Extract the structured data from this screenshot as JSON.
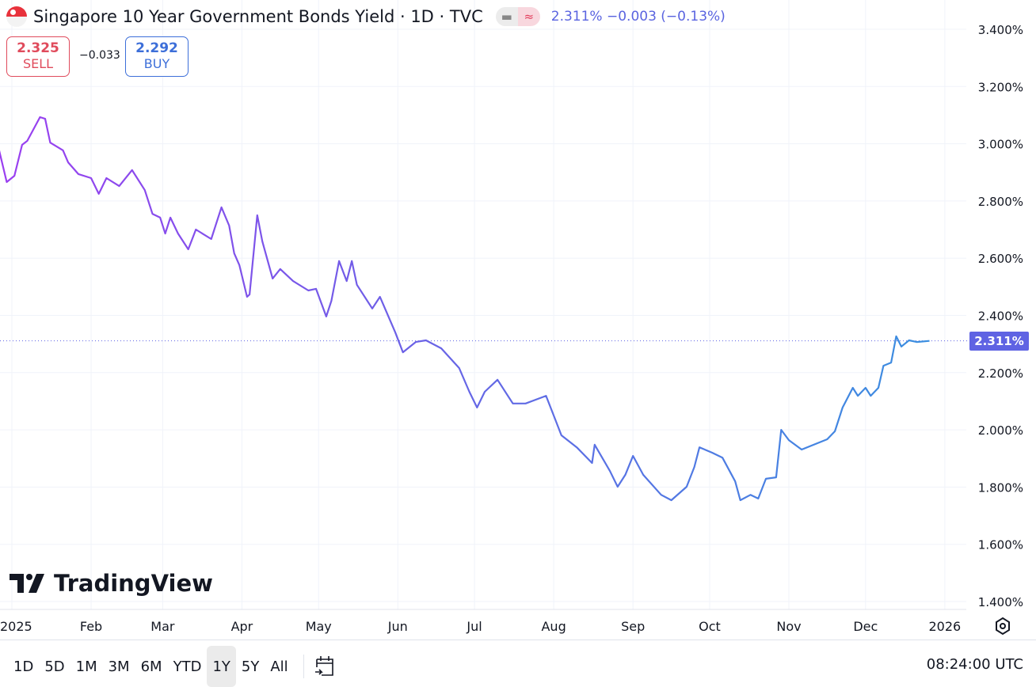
{
  "header": {
    "title": "Singapore 10 Year Government Bonds Yield · 1D · TVC",
    "quote": "2.311% −0.003 (−0.13%)",
    "pill_left_icon": "minus-icon",
    "pill_right_icon": "approx-icon"
  },
  "trade": {
    "sell_price": "2.325",
    "sell_label": "SELL",
    "spread": "−0.033",
    "buy_price": "2.292",
    "buy_label": "BUY"
  },
  "logo": "TradingView",
  "current_label": "2.311%",
  "bottom": {
    "ranges": [
      "1D",
      "5D",
      "1M",
      "3M",
      "6M",
      "YTD",
      "1Y",
      "5Y",
      "All"
    ],
    "active": "1Y",
    "time": "08:24:00 UTC"
  },
  "colors": {
    "line_start": "#9b3ff0",
    "line_end": "#3a8fe0",
    "price_label": "#5f63e3"
  },
  "chart_data": {
    "type": "line",
    "yticks": [
      "3.400%",
      "3.200%",
      "3.000%",
      "2.800%",
      "2.600%",
      "2.400%",
      "2.200%",
      "2.000%",
      "1.800%",
      "1.600%",
      "1.400%"
    ],
    "ylim": [
      1.4,
      3.4
    ],
    "xticks": [
      [
        "2025",
        "2025-01-01"
      ],
      [
        "Feb",
        "2025-02-01"
      ],
      [
        "Mar",
        "2025-03-01"
      ],
      [
        "Apr",
        "2025-04-01"
      ],
      [
        "May",
        "2025-05-01"
      ],
      [
        "Jun",
        "2025-06-01"
      ],
      [
        "Jul",
        "2025-07-01"
      ],
      [
        "Aug",
        "2025-08-01"
      ],
      [
        "Sep",
        "2025-09-01"
      ],
      [
        "Oct",
        "2025-10-01"
      ],
      [
        "Nov",
        "2025-11-01"
      ],
      [
        "Dec",
        "2025-12-01"
      ],
      [
        "2026",
        "2026-01-01"
      ]
    ],
    "grid": true,
    "points": [
      [
        "2024-12-27",
        2.977
      ],
      [
        "2024-12-30",
        2.866
      ],
      [
        "2025-01-02",
        2.888
      ],
      [
        "2025-01-05",
        2.996
      ],
      [
        "2025-01-07",
        3.01
      ],
      [
        "2025-01-12",
        3.093
      ],
      [
        "2025-01-14",
        3.087
      ],
      [
        "2025-01-16",
        3.004
      ],
      [
        "2025-01-21",
        2.977
      ],
      [
        "2025-01-23",
        2.935
      ],
      [
        "2025-01-27",
        2.894
      ],
      [
        "2025-02-01",
        2.88
      ],
      [
        "2025-02-04",
        2.825
      ],
      [
        "2025-02-07",
        2.88
      ],
      [
        "2025-02-12",
        2.852
      ],
      [
        "2025-02-17",
        2.908
      ],
      [
        "2025-02-22",
        2.838
      ],
      [
        "2025-02-25",
        2.755
      ],
      [
        "2025-02-28",
        2.742
      ],
      [
        "2025-03-02",
        2.686
      ],
      [
        "2025-03-04",
        2.742
      ],
      [
        "2025-03-07",
        2.686
      ],
      [
        "2025-03-11",
        2.631
      ],
      [
        "2025-03-14",
        2.7
      ],
      [
        "2025-03-20",
        2.667
      ],
      [
        "2025-03-24",
        2.778
      ],
      [
        "2025-03-27",
        2.714
      ],
      [
        "2025-03-29",
        2.617
      ],
      [
        "2025-03-31",
        2.576
      ],
      [
        "2025-04-03",
        2.465
      ],
      [
        "2025-04-04",
        2.473
      ],
      [
        "2025-04-07",
        2.75
      ],
      [
        "2025-04-09",
        2.659
      ],
      [
        "2025-04-13",
        2.529
      ],
      [
        "2025-04-16",
        2.562
      ],
      [
        "2025-04-21",
        2.52
      ],
      [
        "2025-04-27",
        2.487
      ],
      [
        "2025-04-30",
        2.493
      ],
      [
        "2025-05-04",
        2.396
      ],
      [
        "2025-05-06",
        2.451
      ],
      [
        "2025-05-09",
        2.59
      ],
      [
        "2025-05-12",
        2.52
      ],
      [
        "2025-05-14",
        2.59
      ],
      [
        "2025-05-16",
        2.507
      ],
      [
        "2025-05-22",
        2.424
      ],
      [
        "2025-05-25",
        2.465
      ],
      [
        "2025-05-31",
        2.341
      ],
      [
        "2025-06-03",
        2.271
      ],
      [
        "2025-06-08",
        2.307
      ],
      [
        "2025-06-12",
        2.313
      ],
      [
        "2025-06-18",
        2.285
      ],
      [
        "2025-06-25",
        2.216
      ],
      [
        "2025-06-29",
        2.133
      ],
      [
        "2025-07-02",
        2.078
      ],
      [
        "2025-07-05",
        2.133
      ],
      [
        "2025-07-10",
        2.175
      ],
      [
        "2025-07-16",
        2.092
      ],
      [
        "2025-07-21",
        2.092
      ],
      [
        "2025-07-29",
        2.119
      ],
      [
        "2025-08-01",
        2.05
      ],
      [
        "2025-08-04",
        1.981
      ],
      [
        "2025-08-10",
        1.939
      ],
      [
        "2025-08-16",
        1.884
      ],
      [
        "2025-08-17",
        1.948
      ],
      [
        "2025-08-23",
        1.856
      ],
      [
        "2025-08-26",
        1.801
      ],
      [
        "2025-08-29",
        1.843
      ],
      [
        "2025-09-01",
        1.909
      ],
      [
        "2025-09-05",
        1.843
      ],
      [
        "2025-09-12",
        1.773
      ],
      [
        "2025-09-16",
        1.754
      ],
      [
        "2025-09-22",
        1.801
      ],
      [
        "2025-09-25",
        1.87
      ],
      [
        "2025-09-27",
        1.939
      ],
      [
        "2025-10-02",
        1.92
      ],
      [
        "2025-10-06",
        1.903
      ],
      [
        "2025-10-11",
        1.82
      ],
      [
        "2025-10-13",
        1.754
      ],
      [
        "2025-10-17",
        1.773
      ],
      [
        "2025-10-20",
        1.76
      ],
      [
        "2025-10-23",
        1.829
      ],
      [
        "2025-10-27",
        1.834
      ],
      [
        "2025-10-29",
        2.0
      ],
      [
        "2025-11-01",
        1.964
      ],
      [
        "2025-11-06",
        1.931
      ],
      [
        "2025-11-16",
        1.967
      ],
      [
        "2025-11-19",
        1.995
      ],
      [
        "2025-11-22",
        2.078
      ],
      [
        "2025-11-26",
        2.147
      ],
      [
        "2025-11-28",
        2.119
      ],
      [
        "2025-12-01",
        2.147
      ],
      [
        "2025-12-03",
        2.119
      ],
      [
        "2025-12-06",
        2.147
      ],
      [
        "2025-12-08",
        2.224
      ],
      [
        "2025-12-11",
        2.235
      ],
      [
        "2025-12-13",
        2.327
      ],
      [
        "2025-12-15",
        2.291
      ],
      [
        "2025-12-18",
        2.313
      ],
      [
        "2025-12-21",
        2.307
      ],
      [
        "2025-12-26",
        2.311
      ]
    ]
  }
}
